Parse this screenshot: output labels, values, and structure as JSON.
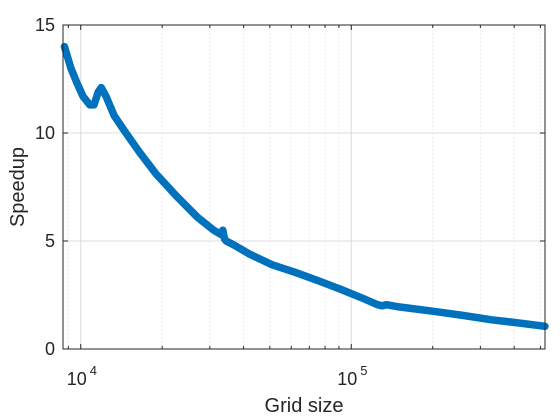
{
  "chart_data": {
    "type": "line",
    "xlabel": "Grid size",
    "ylabel": "Speedup",
    "xscale": "log",
    "xlim": [
      8600,
      520000
    ],
    "ylim": [
      0,
      15
    ],
    "grid": "on",
    "x_tick_labels": [
      {
        "value": 10000,
        "base": "10",
        "exp": "4"
      },
      {
        "value": 100000,
        "base": "10",
        "exp": "5"
      }
    ],
    "y_ticks": [
      0,
      5,
      10,
      15
    ],
    "series": [
      {
        "color": "#0072BD",
        "x": [
          8700,
          8900,
          9200,
          9700,
          10200,
          10800,
          11200,
          11600,
          11900,
          12400,
          13300,
          14500,
          16500,
          19000,
          22500,
          27000,
          31000,
          33000,
          33500,
          34000,
          34500,
          37000,
          42000,
          51000,
          62000,
          76000,
          92000,
          110000,
          125000,
          130000,
          135000,
          150000,
          200000,
          260000,
          330000,
          420000,
          520000
        ],
        "y": [
          14.0,
          13.6,
          13.0,
          12.3,
          11.7,
          11.3,
          11.3,
          11.9,
          12.1,
          11.7,
          10.8,
          10.1,
          9.1,
          8.1,
          7.1,
          6.1,
          5.5,
          5.3,
          5.5,
          5.1,
          5.0,
          4.8,
          4.4,
          3.9,
          3.55,
          3.15,
          2.75,
          2.35,
          2.05,
          2.0,
          2.05,
          1.95,
          1.75,
          1.55,
          1.35,
          1.2,
          1.05
        ]
      }
    ]
  }
}
